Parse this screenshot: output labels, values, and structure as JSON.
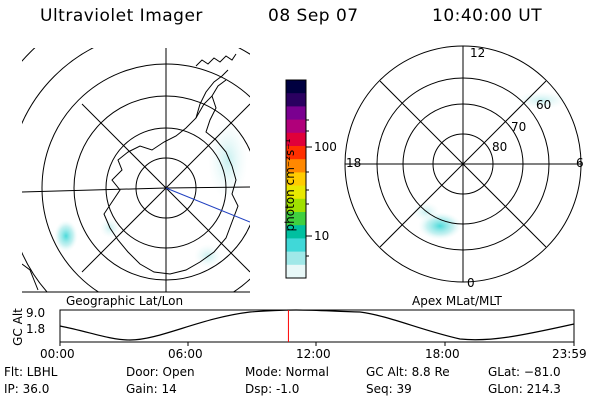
{
  "header": {
    "instrument": "Ultraviolet Imager",
    "date": "08 Sep 07",
    "time": "10:40:00 UT"
  },
  "colorbar": {
    "unit_label": "photon cm⁻²s⁻¹",
    "tick_100": "100",
    "tick_10": "10",
    "colors": [
      "#000040",
      "#2a0060",
      "#7a0090",
      "#b0007a",
      "#e0003a",
      "#ff3000",
      "#ff8800",
      "#ffcc00",
      "#e8e800",
      "#a0e000",
      "#40d040",
      "#00c0a0",
      "#40d8d8",
      "#a0e8e8",
      "#e8f8f8"
    ]
  },
  "geo_panel": {
    "caption": "Geographic Lat/Lon"
  },
  "apex_panel": {
    "caption": "Apex MLat/MLT",
    "mlt_labels": {
      "top": "12",
      "left": "18",
      "right": "6",
      "bottom": "0"
    },
    "lat_labels": [
      "60",
      "70",
      "80"
    ]
  },
  "timeline": {
    "axis_label": "GC Alt",
    "y_ticks": [
      "9.0",
      "1.8"
    ],
    "x_ticks": [
      "00:00",
      "06:00",
      "12:00",
      "18:00",
      "23:59"
    ],
    "current_time_fraction": 0.4444,
    "marker_color": "#ff0000"
  },
  "info": {
    "flt": "Flt: LBHL",
    "ip": "IP: 36.0",
    "door": "Door: Open",
    "gain": "Gain: 14",
    "mode": "Mode: Normal",
    "dsp": "Dsp:   -1.0",
    "gc_alt": "GC Alt: 8.8 Re",
    "seq": "Seq: 39",
    "glat": "GLat: −81.0",
    "glon": "GLon: 214.3"
  }
}
